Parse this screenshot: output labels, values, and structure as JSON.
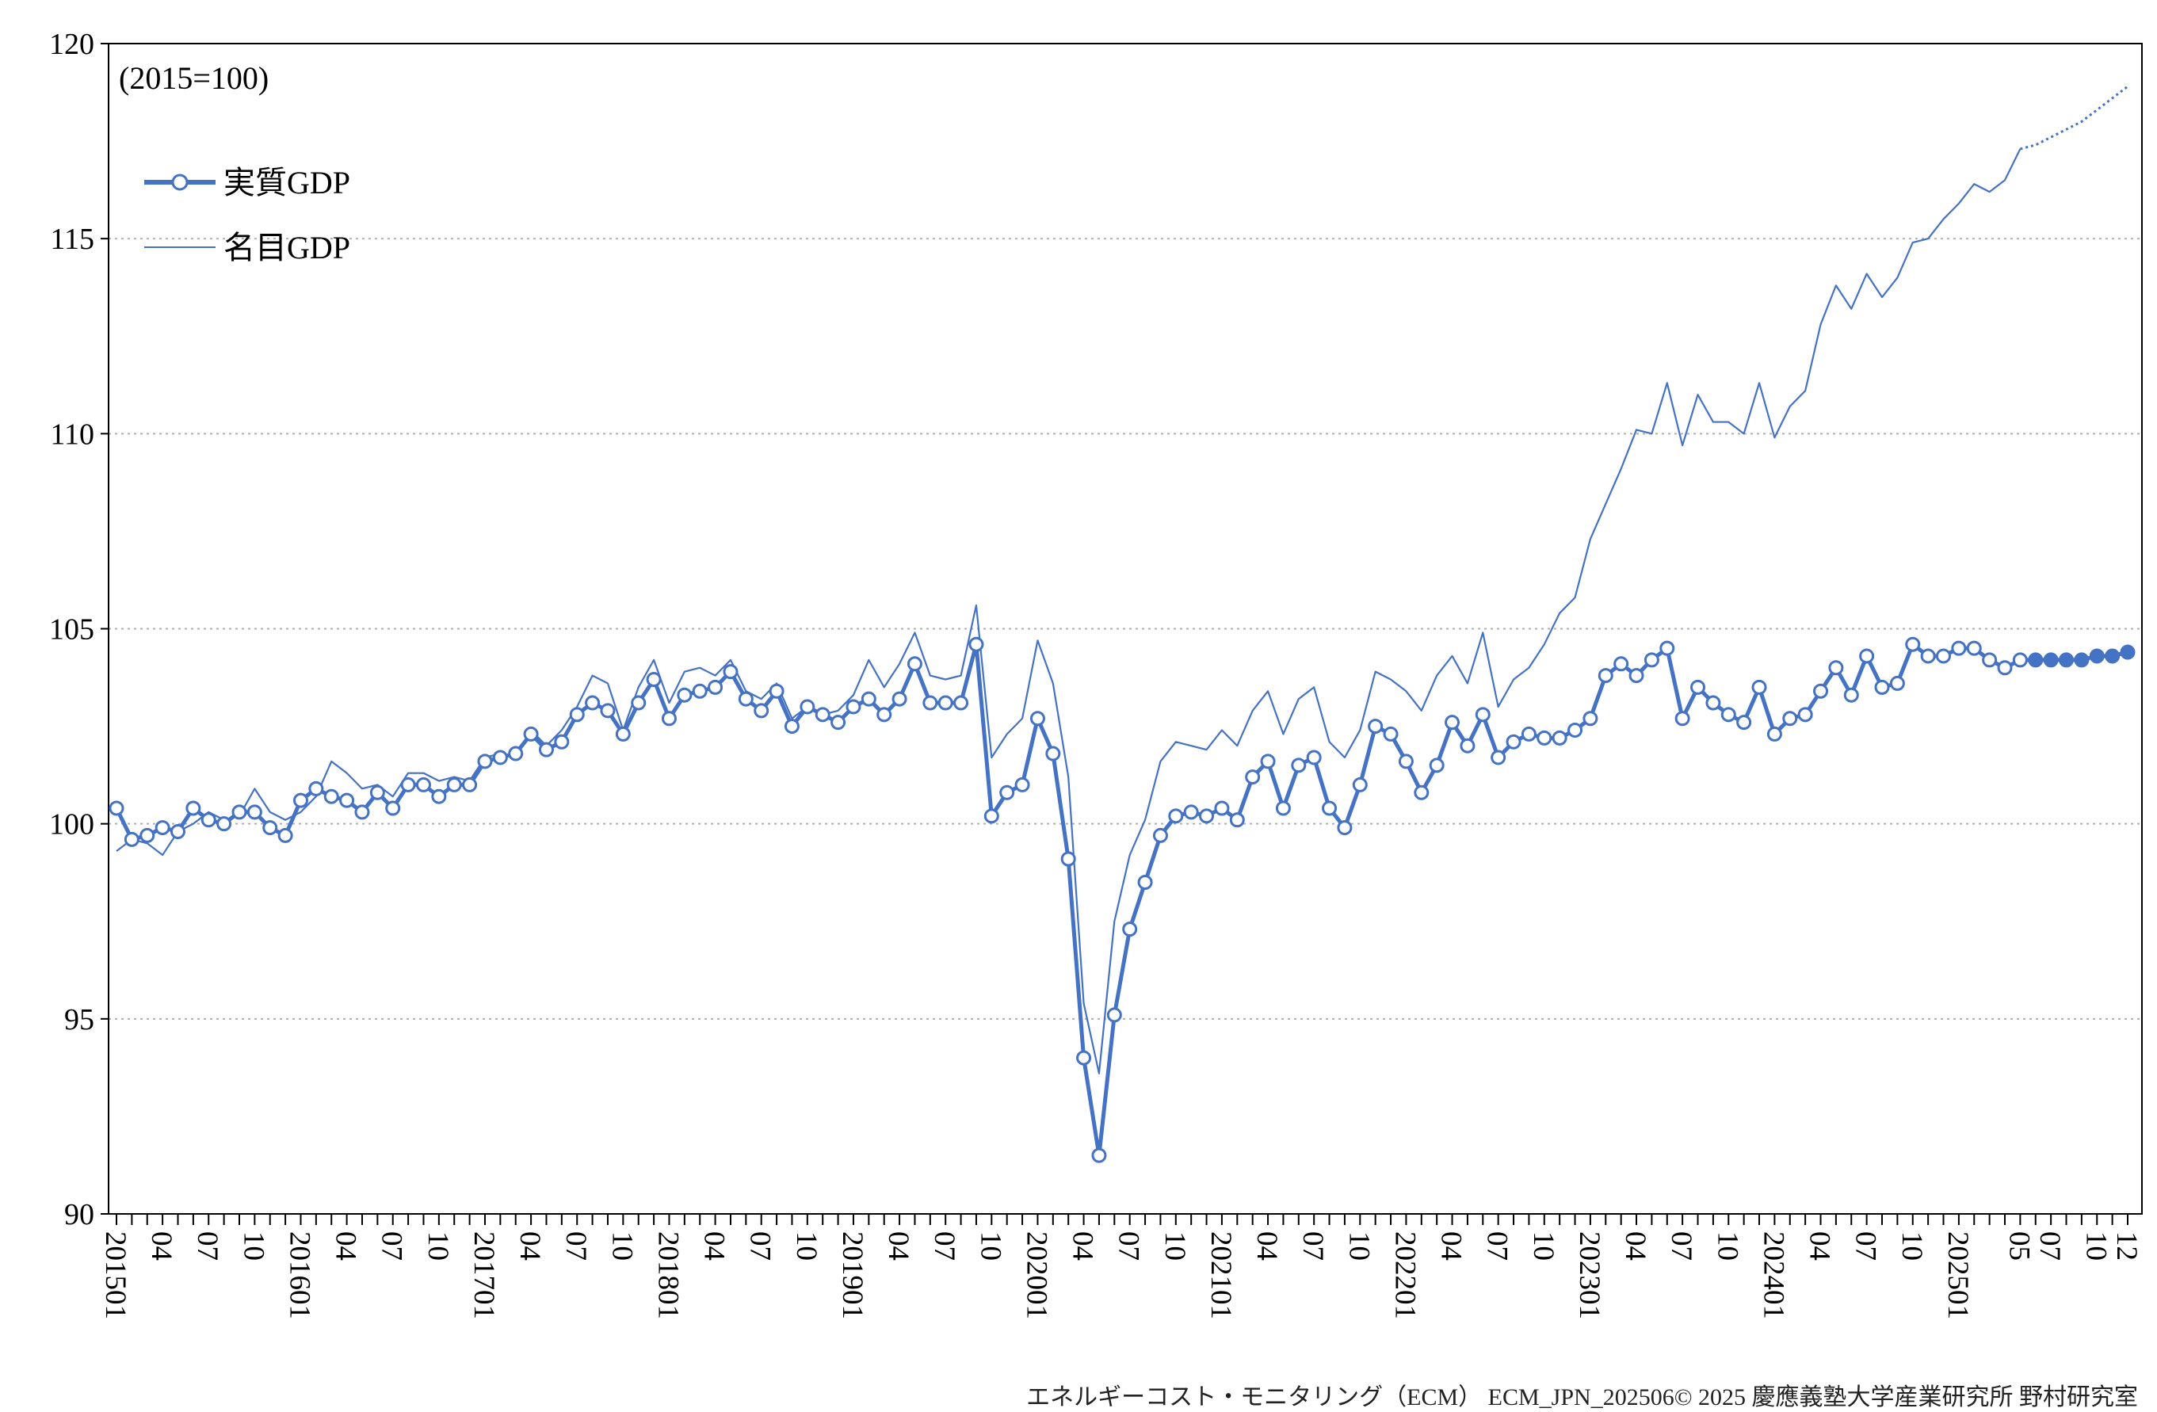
{
  "chart_data": {
    "type": "line",
    "unit_label": "(2015=100)",
    "ylim": [
      90,
      120
    ],
    "yticks": [
      90,
      95,
      100,
      105,
      110,
      115,
      120
    ],
    "grid": "horizontal dotted",
    "legend_position": "top-left",
    "x_tick_labels": [
      {
        "i": 0,
        "t": "201501"
      },
      {
        "i": 3,
        "t": "04"
      },
      {
        "i": 6,
        "t": "07"
      },
      {
        "i": 9,
        "t": "10"
      },
      {
        "i": 12,
        "t": "201601"
      },
      {
        "i": 15,
        "t": "04"
      },
      {
        "i": 18,
        "t": "07"
      },
      {
        "i": 21,
        "t": "10"
      },
      {
        "i": 24,
        "t": "201701"
      },
      {
        "i": 27,
        "t": "04"
      },
      {
        "i": 30,
        "t": "07"
      },
      {
        "i": 33,
        "t": "10"
      },
      {
        "i": 36,
        "t": "201801"
      },
      {
        "i": 39,
        "t": "04"
      },
      {
        "i": 42,
        "t": "07"
      },
      {
        "i": 45,
        "t": "10"
      },
      {
        "i": 48,
        "t": "201901"
      },
      {
        "i": 51,
        "t": "04"
      },
      {
        "i": 54,
        "t": "07"
      },
      {
        "i": 57,
        "t": "10"
      },
      {
        "i": 60,
        "t": "202001"
      },
      {
        "i": 63,
        "t": "04"
      },
      {
        "i": 66,
        "t": "07"
      },
      {
        "i": 69,
        "t": "10"
      },
      {
        "i": 72,
        "t": "202101"
      },
      {
        "i": 75,
        "t": "04"
      },
      {
        "i": 78,
        "t": "07"
      },
      {
        "i": 81,
        "t": "10"
      },
      {
        "i": 84,
        "t": "202201"
      },
      {
        "i": 87,
        "t": "04"
      },
      {
        "i": 90,
        "t": "07"
      },
      {
        "i": 93,
        "t": "10"
      },
      {
        "i": 96,
        "t": "202301"
      },
      {
        "i": 99,
        "t": "04"
      },
      {
        "i": 102,
        "t": "07"
      },
      {
        "i": 105,
        "t": "10"
      },
      {
        "i": 108,
        "t": "202401"
      },
      {
        "i": 111,
        "t": "04"
      },
      {
        "i": 114,
        "t": "07"
      },
      {
        "i": 117,
        "t": "10"
      },
      {
        "i": 120,
        "t": "202501"
      },
      {
        "i": 124,
        "t": "05"
      },
      {
        "i": 126,
        "t": "07"
      },
      {
        "i": 129,
        "t": "10"
      },
      {
        "i": 131,
        "t": "12"
      }
    ],
    "forecast_start_index": 125,
    "series": [
      {
        "name": "実質GDP",
        "color": "#4472c4",
        "style": "thick line with circle markers",
        "values": [
          100.4,
          99.6,
          99.7,
          99.9,
          99.8,
          100.4,
          100.1,
          100.0,
          100.3,
          100.3,
          99.9,
          99.7,
          100.6,
          100.9,
          100.7,
          100.6,
          100.3,
          100.8,
          100.4,
          101.0,
          101.0,
          100.7,
          101.0,
          101.0,
          101.6,
          101.7,
          101.8,
          102.3,
          101.9,
          102.1,
          102.8,
          103.1,
          102.9,
          102.3,
          103.1,
          103.7,
          102.7,
          103.3,
          103.4,
          103.5,
          103.9,
          103.2,
          102.9,
          103.4,
          102.5,
          103.0,
          102.8,
          102.6,
          103.0,
          103.2,
          102.8,
          103.2,
          104.1,
          103.1,
          103.1,
          103.1,
          104.6,
          100.2,
          100.8,
          101.0,
          102.7,
          101.8,
          99.1,
          94.0,
          91.5,
          95.1,
          97.3,
          98.5,
          99.7,
          100.2,
          100.3,
          100.2,
          100.4,
          100.1,
          101.2,
          101.6,
          100.4,
          101.5,
          101.7,
          100.4,
          99.9,
          101.0,
          102.5,
          102.3,
          101.6,
          100.8,
          101.5,
          102.6,
          102.0,
          102.8,
          101.7,
          102.1,
          102.3,
          102.2,
          102.2,
          102.4,
          102.7,
          103.8,
          104.1,
          103.8,
          104.2,
          104.5,
          102.7,
          103.5,
          103.1,
          102.8,
          102.6,
          103.5,
          102.3,
          102.7,
          102.8,
          103.4,
          104.0,
          103.3,
          104.3,
          103.5,
          103.6,
          104.6,
          104.3,
          104.3,
          104.5,
          104.5,
          104.2,
          104.0,
          104.2,
          104.2,
          104.2,
          104.2,
          104.2,
          104.3,
          104.3,
          104.4
        ]
      },
      {
        "name": "名目GDP",
        "color": "#4472c4",
        "style": "thin line",
        "values": [
          99.3,
          99.6,
          99.5,
          99.2,
          99.8,
          100.0,
          100.3,
          100.1,
          100.2,
          100.9,
          100.3,
          100.1,
          100.3,
          100.7,
          101.6,
          101.3,
          100.9,
          101.0,
          100.7,
          101.3,
          101.3,
          101.1,
          101.2,
          101.1,
          101.7,
          101.8,
          101.7,
          102.4,
          102.0,
          102.4,
          103.0,
          103.8,
          103.6,
          102.4,
          103.5,
          104.2,
          103.1,
          103.9,
          104.0,
          103.8,
          104.2,
          103.4,
          103.2,
          103.6,
          102.7,
          103.0,
          102.8,
          102.9,
          103.3,
          104.2,
          103.5,
          104.1,
          104.9,
          103.8,
          103.7,
          103.8,
          105.6,
          101.7,
          102.3,
          102.7,
          104.7,
          103.6,
          101.2,
          95.4,
          93.6,
          97.5,
          99.2,
          100.1,
          101.6,
          102.1,
          102.0,
          101.9,
          102.4,
          102.0,
          102.9,
          103.4,
          102.3,
          103.2,
          103.5,
          102.1,
          101.7,
          102.4,
          103.9,
          103.7,
          103.4,
          102.9,
          103.8,
          104.3,
          103.6,
          104.9,
          103.0,
          103.7,
          104.0,
          104.6,
          105.4,
          105.8,
          107.3,
          108.2,
          109.1,
          110.1,
          110.0,
          111.3,
          109.7,
          111.0,
          110.3,
          110.3,
          110.0,
          111.3,
          109.9,
          110.7,
          111.1,
          112.8,
          113.8,
          113.2,
          114.1,
          113.5,
          114.0,
          114.9,
          115.0,
          115.5,
          115.9,
          116.4,
          116.2,
          116.5,
          117.3,
          117.4,
          117.6,
          117.8,
          118.0,
          118.3,
          118.6,
          118.9
        ]
      }
    ]
  },
  "footer": "エネルギーコスト・モニタリング（ECM） ECM_JPN_202506© 2025 慶應義塾大学産業研究所 野村研究室"
}
